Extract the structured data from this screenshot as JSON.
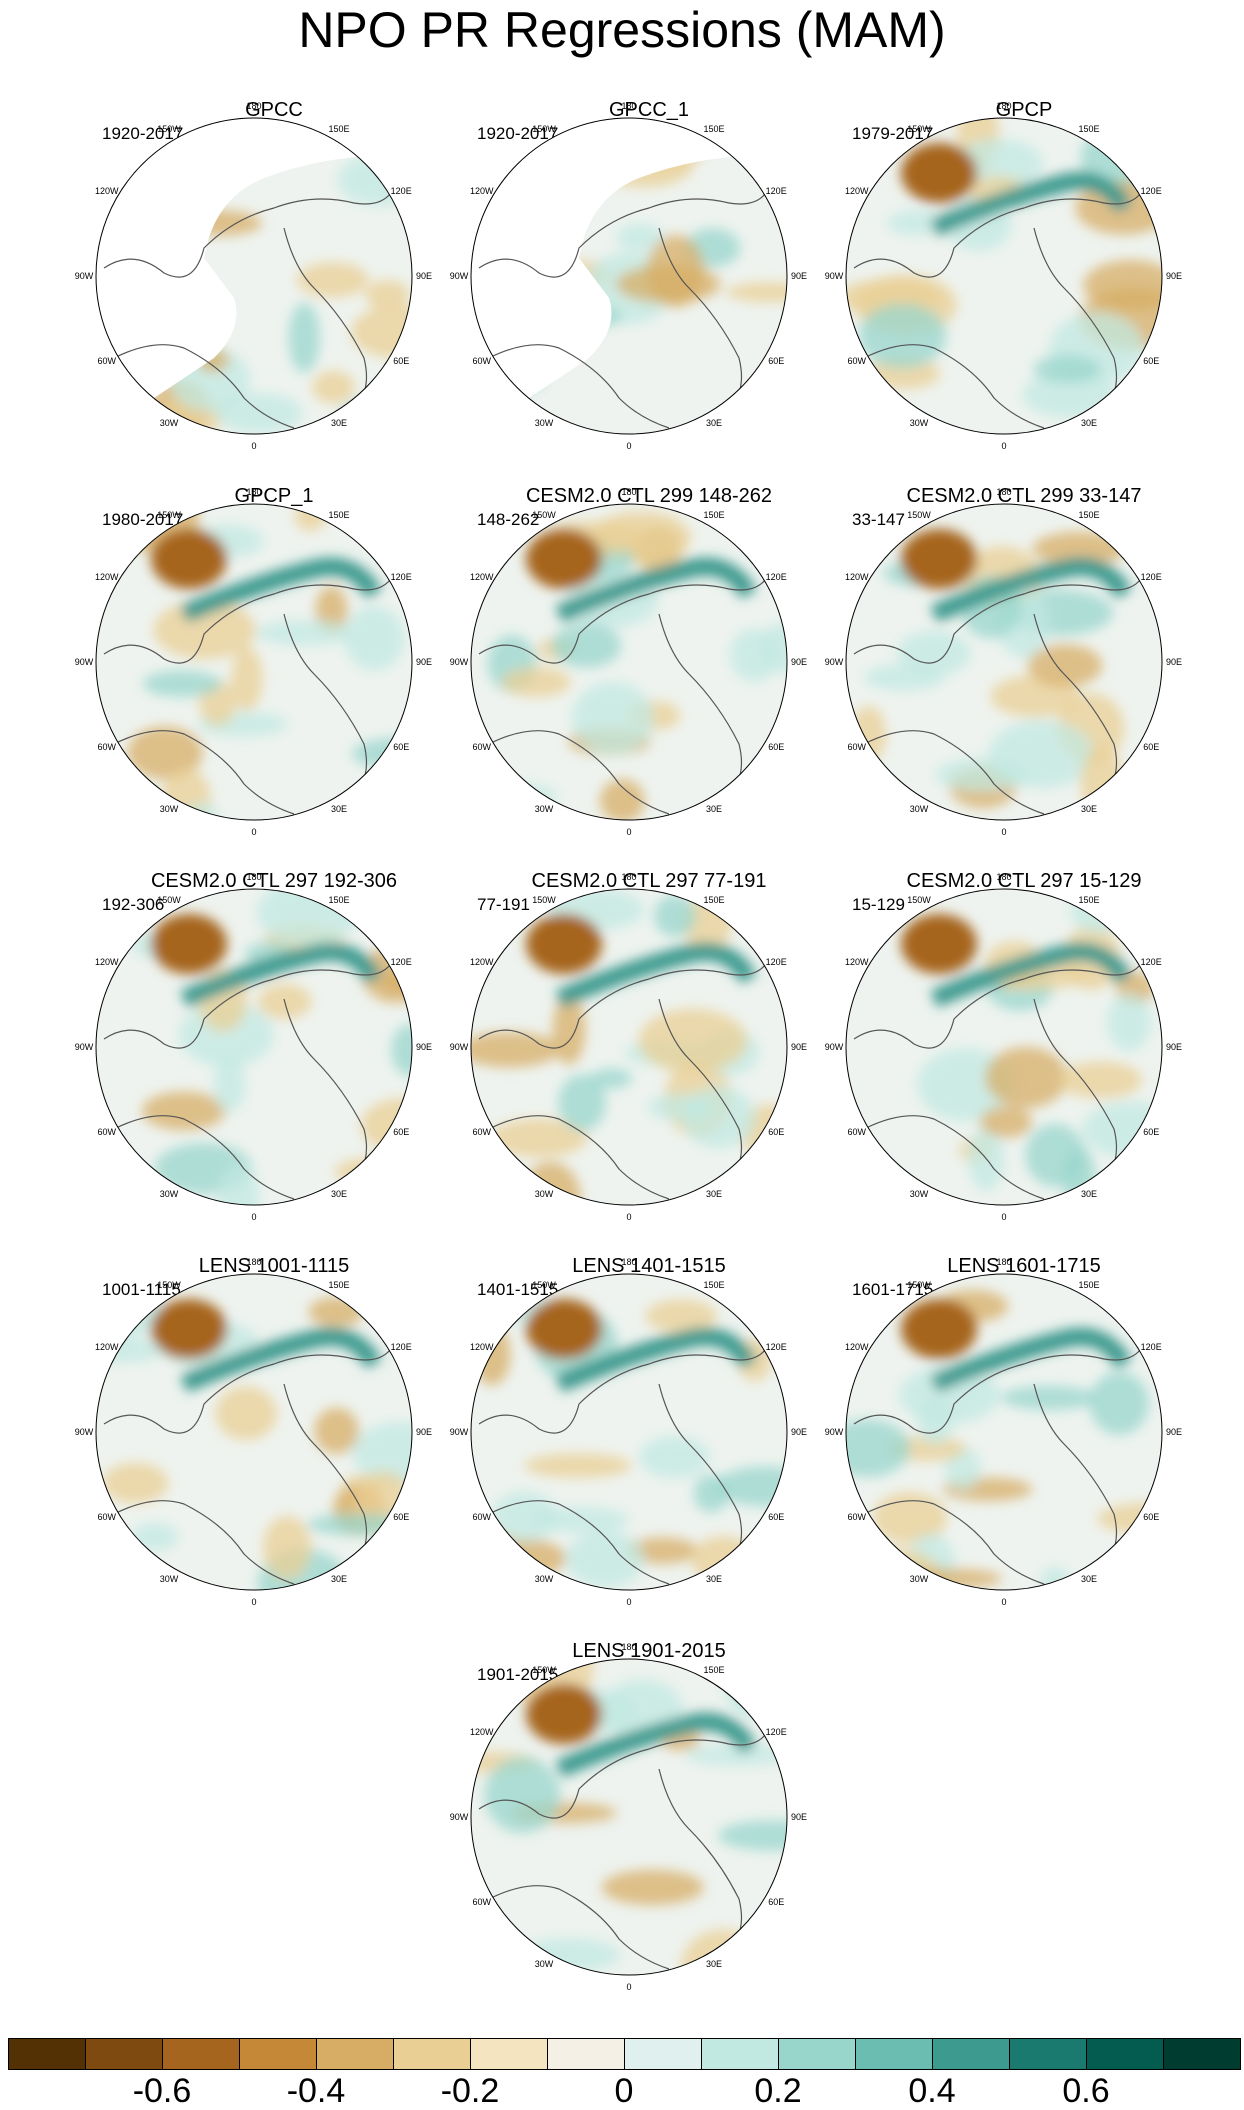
{
  "title": "NPO PR Regressions (MAM)",
  "lon_labels": [
    "180",
    "150E",
    "120E",
    "90E",
    "60E",
    "30E",
    "0",
    "30W",
    "60W",
    "90W",
    "120W",
    "150W"
  ],
  "panels": [
    {
      "title": "GPCC",
      "period": "1920-2017"
    },
    {
      "title": "GPCC_1",
      "period": "1920-2017"
    },
    {
      "title": "GPCP",
      "period": "1979-2017"
    },
    {
      "title": "GPCP_1",
      "period": "1980-2017"
    },
    {
      "title": "CESM2.0 CTL 299 148-262",
      "period": "148-262"
    },
    {
      "title": "CESM2.0 CTL 299 33-147",
      "period": "33-147"
    },
    {
      "title": "CESM2.0 CTL 297 192-306",
      "period": "192-306"
    },
    {
      "title": "CESM2.0 CTL 297 77-191",
      "period": "77-191"
    },
    {
      "title": "CESM2.0 CTL 297 15-129",
      "period": "15-129"
    },
    {
      "title": "LENS 1001-1115",
      "period": "1001-1115"
    },
    {
      "title": "LENS 1401-1515",
      "period": "1401-1515"
    },
    {
      "title": "LENS 1601-1715",
      "period": "1601-1715"
    },
    {
      "title": "LENS 1901-2015",
      "period": "1901-2015"
    }
  ],
  "colorbar": {
    "colors": [
      "#543005",
      "#7f4a10",
      "#a6651e",
      "#c48836",
      "#d7ad65",
      "#e9cf94",
      "#f4e4c0",
      "#f5f0e5",
      "#e0f0ee",
      "#c2e8e2",
      "#98d6cc",
      "#6cbdb1",
      "#3d9a8f",
      "#1b7a6f",
      "#045b4f",
      "#003c30"
    ],
    "tick_labels": [
      "-0.6",
      "-0.4",
      "-0.2",
      "0",
      "0.2",
      "0.4",
      "0.6"
    ]
  }
}
